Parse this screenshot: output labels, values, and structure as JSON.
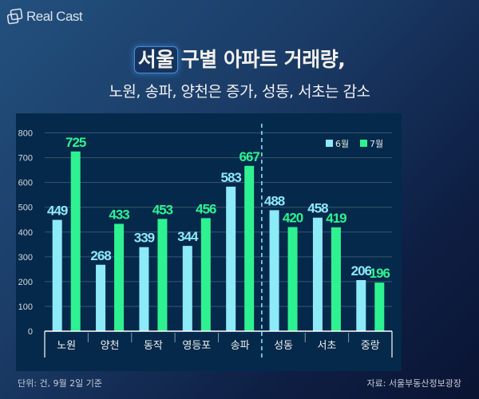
{
  "brand": {
    "name": "Real Cast"
  },
  "title": {
    "highlight": "서울",
    "rest": "구별 아파트 거래량,",
    "subtitle": "노원, 송파, 양천은 증가, 성동, 서초는 감소"
  },
  "footer": {
    "unit_note": "단위: 건, 9월 2일 기준",
    "source": "자료: 서울부동산정보광장"
  },
  "colors": {
    "june": "#8deaf7",
    "july": "#2ef291",
    "june_label": "#8deaf7",
    "july_label": "#2ef291",
    "grid": "#3b5573",
    "axis": "#ffffff",
    "separator": "#8deaf7"
  },
  "chart_data": {
    "type": "bar",
    "title": "서울 구별 아파트 거래량",
    "xlabel": "",
    "ylabel": "",
    "categories": [
      "노원",
      "양천",
      "동작",
      "영등포",
      "송파",
      "성동",
      "서초",
      "중랑"
    ],
    "series": [
      {
        "name": "6월",
        "values": [
          449,
          268,
          339,
          344,
          583,
          488,
          458,
          206
        ]
      },
      {
        "name": "7월",
        "values": [
          725,
          433,
          453,
          456,
          667,
          420,
          419,
          196
        ]
      }
    ],
    "ylim": [
      0,
      800
    ],
    "yticks": [
      0,
      100,
      200,
      300,
      400,
      500,
      600,
      700,
      800
    ],
    "grid": true,
    "legend": "top-right",
    "separator_after_category": "송파"
  }
}
